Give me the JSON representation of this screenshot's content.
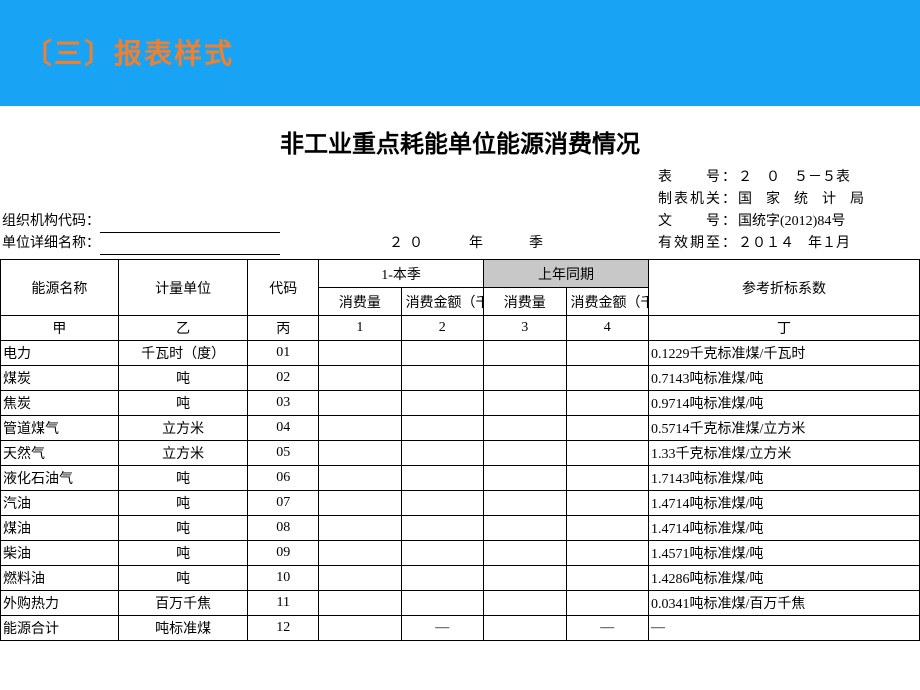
{
  "banner": "〔三〕报表样式",
  "title": "非工业重点耗能单位能源消费情况",
  "meta": {
    "table_no_label": "表　　号：",
    "table_no_value": "２　０　５－５表",
    "agency_label": "制表机关：",
    "agency_value": "国　家　统　计　局",
    "org_code_label": "组织机构代码：",
    "doc_no_label": "文　　号：",
    "doc_no_value": "国统字(2012)84号",
    "unit_name_label": "单位详细名称：",
    "period_text": "２０　　年　　季",
    "valid_label": "有效期至：",
    "valid_value": "２０１４　年１月"
  },
  "headers": {
    "energy_name": "能源名称",
    "unit": "计量单位",
    "code": "代码",
    "current_q": "1-本季",
    "prev_year": "上年同期",
    "consumption": "消费量",
    "amount": "消费金额（千元）",
    "ref_coef": "参考折标系数"
  },
  "index_row": {
    "c_name": "甲",
    "c_unit": "乙",
    "c_code": "丙",
    "c1": "1",
    "c2": "2",
    "c3": "3",
    "c4": "4",
    "c_ref": "丁"
  },
  "rows": [
    {
      "name": "电力",
      "unit": "千瓦时（度）",
      "code": "01",
      "v1": "",
      "v2": "",
      "v3": "",
      "v4": "",
      "ref": "0.1229千克标准煤/千瓦时"
    },
    {
      "name": "煤炭",
      "unit": "吨",
      "code": "02",
      "v1": "",
      "v2": "",
      "v3": "",
      "v4": "",
      "ref": "0.7143吨标准煤/吨"
    },
    {
      "name": "焦炭",
      "unit": "吨",
      "code": "03",
      "v1": "",
      "v2": "",
      "v3": "",
      "v4": "",
      "ref": "0.9714吨标准煤/吨"
    },
    {
      "name": "管道煤气",
      "unit": "立方米",
      "code": "04",
      "v1": "",
      "v2": "",
      "v3": "",
      "v4": "",
      "ref": "0.5714千克标准煤/立方米"
    },
    {
      "name": "天然气",
      "unit": "立方米",
      "code": "05",
      "v1": "",
      "v2": "",
      "v3": "",
      "v4": "",
      "ref": "1.33千克标准煤/立方米"
    },
    {
      "name": "液化石油气",
      "unit": "吨",
      "code": "06",
      "v1": "",
      "v2": "",
      "v3": "",
      "v4": "",
      "ref": "1.7143吨标准煤/吨"
    },
    {
      "name": "汽油",
      "unit": "吨",
      "code": "07",
      "v1": "",
      "v2": "",
      "v3": "",
      "v4": "",
      "ref": "1.4714吨标准煤/吨"
    },
    {
      "name": "煤油",
      "unit": "吨",
      "code": "08",
      "v1": "",
      "v2": "",
      "v3": "",
      "v4": "",
      "ref": "1.4714吨标准煤/吨"
    },
    {
      "name": "柴油",
      "unit": "吨",
      "code": "09",
      "v1": "",
      "v2": "",
      "v3": "",
      "v4": "",
      "ref": "1.4571吨标准煤/吨"
    },
    {
      "name": "燃料油",
      "unit": "吨",
      "code": "10",
      "v1": "",
      "v2": "",
      "v3": "",
      "v4": "",
      "ref": "1.4286吨标准煤/吨"
    },
    {
      "name": "外购热力",
      "unit": "百万千焦",
      "code": "11",
      "v1": "",
      "v2": "",
      "v3": "",
      "v4": "",
      "ref": "0.0341吨标准煤/百万千焦"
    },
    {
      "name": "能源合计",
      "unit": "吨标准煤",
      "code": "12",
      "v1": "",
      "v2": "—",
      "v3": "",
      "v4": "—",
      "ref": "—"
    }
  ],
  "colors": {
    "banner_bg": "#19a3f4",
    "banner_text": "#f08030",
    "shaded_header": "#c8c8c8",
    "border": "#000000"
  }
}
